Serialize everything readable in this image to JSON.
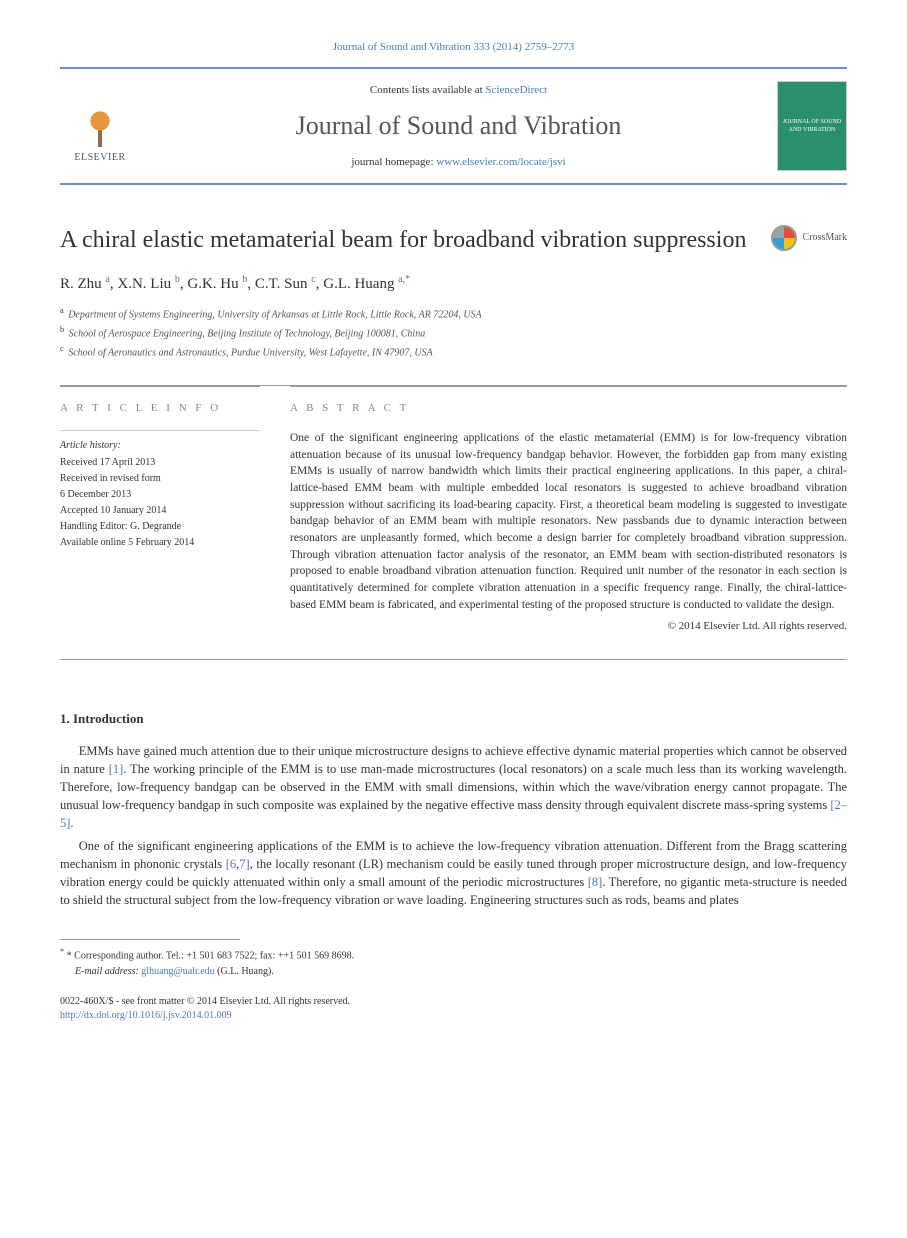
{
  "header": {
    "citation": "Journal of Sound and Vibration 333 (2014) 2759–2773",
    "contents_prefix": "Contents lists available at ",
    "contents_link": "ScienceDirect",
    "journal_name": "Journal of Sound and Vibration",
    "homepage_prefix": "journal homepage: ",
    "homepage_link": "www.elsevier.com/locate/jsvi",
    "publisher": "ELSEVIER",
    "cover_text": "JOURNAL OF SOUND AND VIBRATION"
  },
  "crossmark": "CrossMark",
  "title": "A chiral elastic metamaterial beam for broadband vibration suppression",
  "authors_html": "R. Zhu <sup>a</sup>, X.N. Liu <sup>b</sup>, G.K. Hu <sup>b</sup>, C.T. Sun <sup>c</sup>, G.L. Huang <sup>a,*</sup>",
  "affiliations": [
    {
      "sup": "a",
      "text": "Department of Systems Engineering, University of Arkansas at Little Rock, Little Rock, AR 72204, USA"
    },
    {
      "sup": "b",
      "text": "School of Aerospace Engineering, Beijing Institute of Technology, Beijing 100081, China"
    },
    {
      "sup": "c",
      "text": "School of Aeronautics and Astronautics, Purdue University, West Lafayette, IN 47907, USA"
    }
  ],
  "article_info": {
    "heading": "A R T I C L E  I N F O",
    "history_label": "Article history:",
    "items": [
      "Received 17 April 2013",
      "Received in revised form",
      "6 December 2013",
      "Accepted 10 January 2014",
      "Handling Editor: G. Degrande",
      "Available online 5 February 2014"
    ]
  },
  "abstract": {
    "heading": "A B S T R A C T",
    "text": "One of the significant engineering applications of the elastic metamaterial (EMM) is for low-frequency vibration attenuation because of its unusual low-frequency bandgap behavior. However, the forbidden gap from many existing EMMs is usually of narrow bandwidth which limits their practical engineering applications. In this paper, a chiral-lattice-based EMM beam with multiple embedded local resonators is suggested to achieve broadband vibration suppression without sacrificing its load-bearing capacity. First, a theoretical beam modeling is suggested to investigate bandgap behavior of an EMM beam with multiple resonators. New passbands due to dynamic interaction between resonators are unpleasantly formed, which become a design barrier for completely broadband vibration suppression. Through vibration attenuation factor analysis of the resonator, an EMM beam with section-distributed resonators is proposed to enable broadband vibration attenuation function. Required unit number of the resonator in each section is quantitatively determined for complete vibration attenuation in a specific frequency range. Finally, the chiral-lattice-based EMM beam is fabricated, and experimental testing of the proposed structure is conducted to validate the design.",
    "copyright": "© 2014 Elsevier Ltd. All rights reserved."
  },
  "intro": {
    "heading": "1.  Introduction",
    "para1_pre": "EMMs have gained much attention due to their unique microstructure designs to achieve effective dynamic material properties which cannot be observed in nature ",
    "ref1": "[1]",
    "para1_mid": ". The working principle of the EMM is to use man-made microstructures (local resonators) on a scale much less than its working wavelength. Therefore, low-frequency bandgap can be observed in the EMM with small dimensions, within which the wave/vibration energy cannot propagate. The unusual low-frequency bandgap in such composite was explained by the negative effective mass density through equivalent discrete mass-spring systems ",
    "ref2": "[2–5]",
    "para1_end": ".",
    "para2_pre": "One of the significant engineering applications of the EMM is to achieve the low-frequency vibration attenuation. Different from the Bragg scattering mechanism in phononic crystals ",
    "ref3": "[6",
    "ref3b": "7]",
    "para2_mid": ", the locally resonant (LR) mechanism could be easily tuned through proper microstructure design, and low-frequency vibration energy could be quickly attenuated within only a small amount of the periodic microstructures ",
    "ref4": "[8]",
    "para2_end": ". Therefore, no gigantic meta-structure is needed to shield the structural subject from the low-frequency vibration or wave loading. Engineering structures such as rods, beams and plates"
  },
  "footer": {
    "corr_label": "* Corresponding author. Tel.: ",
    "tel": "+1 501 683 7522",
    "fax_label": "; fax: ",
    "fax": "++1 501 569 8698.",
    "email_label": "E-mail address: ",
    "email": "glhuang@ualr.edu",
    "email_suffix": " (G.L. Huang).",
    "issn_line": "0022-460X/$ - see front matter © 2014 Elsevier Ltd. All rights reserved.",
    "doi": "http://dx.doi.org/10.1016/j.jsv.2014.01.009"
  },
  "colors": {
    "link": "#4a7bb5",
    "rule": "#6b8fbf",
    "text": "#333333",
    "muted": "#888888"
  }
}
